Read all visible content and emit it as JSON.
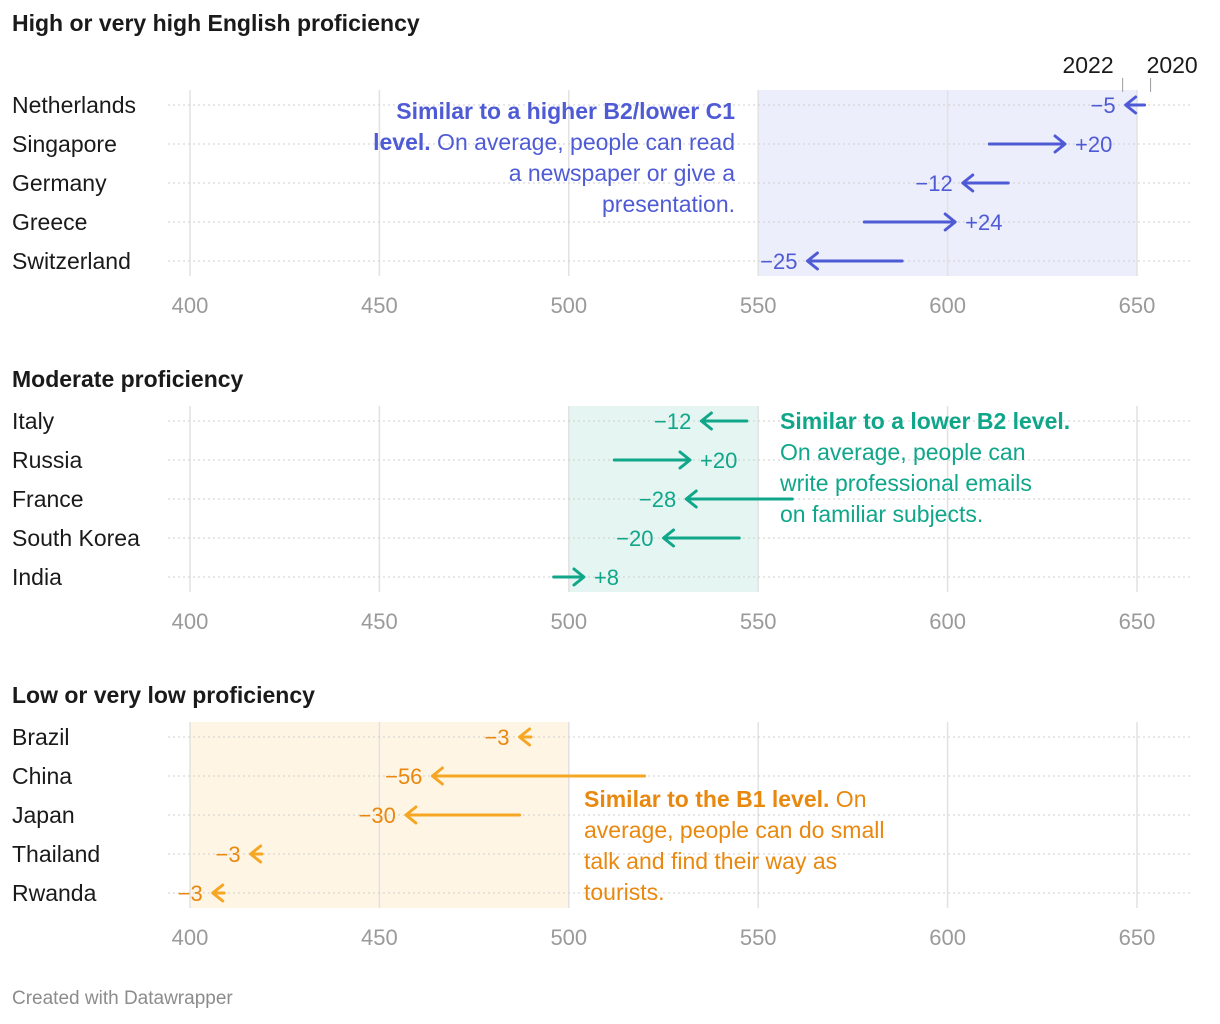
{
  "chart_data": [
    {
      "type": "arrow-dot",
      "title": "High or very high English proficiency",
      "legend": {
        "start_label": "2020",
        "end_label": "2022",
        "placement": "top-right"
      },
      "xlim": [
        400,
        650
      ],
      "xticks": [
        "400",
        "450",
        "500",
        "550",
        "600",
        "650"
      ],
      "band": {
        "from": 550,
        "to": 650,
        "color": "#eceefb"
      },
      "color": "#4f5bd5",
      "annotation": {
        "bold": "Similar to a higher B2/lower C1 level.",
        "text": "On average, people can read a newspaper or give a presentation.",
        "lines": [
          [
            {
              "b": "Similar to a higher B2/lower C1"
            }
          ],
          [
            {
              "b": "level."
            },
            {
              "t": " On average, people can read"
            }
          ],
          [
            {
              "t": "a newspaper or give a"
            }
          ],
          [
            {
              "t": "presentation."
            }
          ]
        ]
      },
      "rows": [
        {
          "country": "Netherlands",
          "y2020": 652,
          "y2022": 647,
          "change": "−5"
        },
        {
          "country": "Singapore",
          "y2020": 611,
          "y2022": 631,
          "change": "+20"
        },
        {
          "country": "Germany",
          "y2020": 616,
          "y2022": 604,
          "change": "−12"
        },
        {
          "country": "Greece",
          "y2020": 578,
          "y2022": 602,
          "change": "+24"
        },
        {
          "country": "Switzerland",
          "y2020": 588,
          "y2022": 563,
          "change": "−25"
        }
      ]
    },
    {
      "type": "arrow-dot",
      "title": "Moderate proficiency",
      "xlim": [
        400,
        650
      ],
      "xticks": [
        "400",
        "450",
        "500",
        "550",
        "600",
        "650"
      ],
      "band": {
        "from": 500,
        "to": 550,
        "color": "#e5f5f1"
      },
      "color": "#0fa68a",
      "annotation": {
        "bold": "Similar to a lower B2 level.",
        "text": "On average, people can write professional emails on familiar subjects.",
        "lines": [
          [
            {
              "b": "Similar to a lower B2 level."
            }
          ],
          [
            {
              "t": "On average, people can"
            }
          ],
          [
            {
              "t": "write professional emails"
            }
          ],
          [
            {
              "t": "on familiar subjects."
            }
          ]
        ]
      },
      "rows": [
        {
          "country": "Italy",
          "y2020": 547,
          "y2022": 535,
          "change": "−12"
        },
        {
          "country": "Russia",
          "y2020": 512,
          "y2022": 532,
          "change": "+20"
        },
        {
          "country": "France",
          "y2020": 559,
          "y2022": 531,
          "change": "−28"
        },
        {
          "country": "South Korea",
          "y2020": 545,
          "y2022": 525,
          "change": "−20"
        },
        {
          "country": "India",
          "y2020": 496,
          "y2022": 504,
          "change": "+8"
        }
      ]
    },
    {
      "type": "arrow-dot",
      "title": "Low or very low proficiency",
      "xlim": [
        400,
        650
      ],
      "xticks": [
        "400",
        "450",
        "500",
        "550",
        "600",
        "650"
      ],
      "band": {
        "from": 400,
        "to": 500,
        "color": "#fef5e5"
      },
      "color": "#f5a623",
      "annotation_color": "#e9880f",
      "annotation": {
        "bold": "Similar to the B1 level.",
        "text": "On average, people can do small talk and find their way as tourists.",
        "lines": [
          [
            {
              "b": "Similar to the B1 level."
            },
            {
              "t": " On"
            }
          ],
          [
            {
              "t": "average, people can do small"
            }
          ],
          [
            {
              "t": "talk and find their way as"
            }
          ],
          [
            {
              "t": "tourists."
            }
          ]
        ]
      },
      "rows": [
        {
          "country": "Brazil",
          "y2020": 490,
          "y2022": 487,
          "change": "−3"
        },
        {
          "country": "China",
          "y2020": 520,
          "y2022": 464,
          "change": "−56"
        },
        {
          "country": "Japan",
          "y2020": 487,
          "y2022": 457,
          "change": "−30"
        },
        {
          "country": "Thailand",
          "y2020": 419,
          "y2022": 416,
          "change": "−3"
        },
        {
          "country": "Rwanda",
          "y2020": 409,
          "y2022": 406,
          "change": "−3"
        }
      ]
    }
  ],
  "footer": "Created with Datawrapper"
}
